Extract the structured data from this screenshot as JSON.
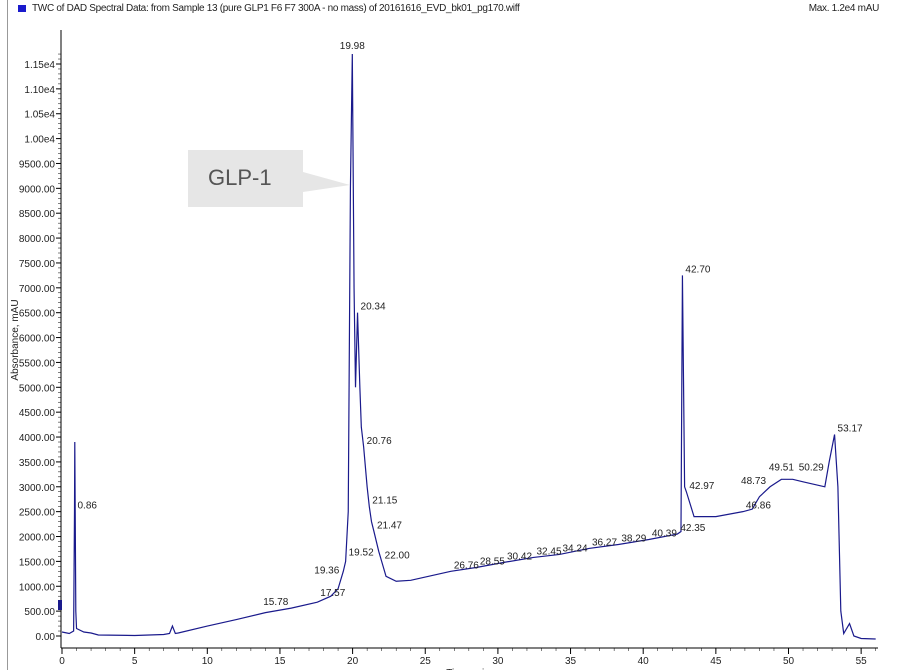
{
  "header": {
    "title": "TWC of DAD Spectral Data: from Sample 13 (pure GLP1 F6 F7 300A - no mass) of 20161616_EVD_bk01_pg170.wiff",
    "max": "Max. 1.2e4 mAU"
  },
  "annotation": {
    "label": "GLP-1",
    "target_peak": 19.98
  },
  "chart_data": {
    "type": "line",
    "xlabel": "Time, min",
    "ylabel": "Absorbance, mAU",
    "xlim": [
      0,
      56
    ],
    "ylim": [
      -200,
      11900
    ],
    "xticks": [
      0,
      5,
      10,
      15,
      20,
      25,
      30,
      35,
      40,
      45,
      50,
      55
    ],
    "yticks": [
      {
        "v": 0,
        "label": "0.00"
      },
      {
        "v": 500,
        "label": "500.00"
      },
      {
        "v": 1000,
        "label": "1000.00"
      },
      {
        "v": 1500,
        "label": "1500.00"
      },
      {
        "v": 2000,
        "label": "2000.00"
      },
      {
        "v": 2500,
        "label": "2500.00"
      },
      {
        "v": 3000,
        "label": "3000.00"
      },
      {
        "v": 3500,
        "label": "3500.00"
      },
      {
        "v": 4000,
        "label": "4000.00"
      },
      {
        "v": 4500,
        "label": "4500.00"
      },
      {
        "v": 5000,
        "label": "5000.00"
      },
      {
        "v": 5500,
        "label": "5500.00"
      },
      {
        "v": 6000,
        "label": "6000.00"
      },
      {
        "v": 6500,
        "label": "6500.00"
      },
      {
        "v": 7000,
        "label": "7000.00"
      },
      {
        "v": 7500,
        "label": "7500.00"
      },
      {
        "v": 8000,
        "label": "8000.00"
      },
      {
        "v": 8500,
        "label": "8500.00"
      },
      {
        "v": 9000,
        "label": "9000.00"
      },
      {
        "v": 9500,
        "label": "9500.00"
      },
      {
        "v": 10000,
        "label": "1.00e4"
      },
      {
        "v": 10500,
        "label": "1.05e4"
      },
      {
        "v": 11000,
        "label": "1.10e4"
      },
      {
        "v": 11500,
        "label": "1.15e4"
      }
    ],
    "color": "#1a1a8c",
    "series": [
      {
        "x": [
          0,
          0.5,
          0.8,
          0.86,
          0.88,
          0.95,
          1.0,
          1.5,
          2,
          2.5,
          5,
          7,
          7.4,
          7.6,
          7.8,
          8,
          10,
          12,
          14,
          15.78,
          17.57,
          18.5,
          19,
          19.36,
          19.52,
          19.7,
          19.85,
          19.98,
          20.1,
          20.2,
          20.34,
          20.5,
          20.6,
          20.76,
          21.0,
          21.15,
          21.3,
          21.47,
          21.8,
          22.0,
          22.3,
          23,
          24,
          26.76,
          28.55,
          30.42,
          32.45,
          34.24,
          36.27,
          38.29,
          40.39,
          42.35,
          42.6,
          42.7,
          42.85,
          42.97,
          43.5,
          45,
          46.86,
          47.5,
          48,
          48.73,
          49.51,
          50.29,
          51,
          52.5,
          52.8,
          53.17,
          53.4,
          53.6,
          53.8,
          54.2,
          54.5,
          55,
          56
        ],
        "y": [
          80,
          50,
          100,
          2500,
          3900,
          500,
          150,
          80,
          60,
          20,
          10,
          30,
          50,
          200,
          50,
          60,
          200,
          330,
          470,
          560,
          680,
          800,
          950,
          1300,
          1500,
          2500,
          9000,
          11700,
          7000,
          5000,
          6500,
          5000,
          4200,
          3800,
          3000,
          2600,
          2300,
          2100,
          1700,
          1500,
          1200,
          1100,
          1120,
          1300,
          1380,
          1480,
          1580,
          1640,
          1760,
          1840,
          1940,
          2050,
          2100,
          7250,
          3000,
          2900,
          2400,
          2400,
          2500,
          2550,
          2800,
          3000,
          3150,
          3150,
          3100,
          3000,
          3500,
          4050,
          3000,
          500,
          50,
          250,
          0,
          -50,
          -60
        ]
      }
    ],
    "peak_labels": [
      {
        "t": 0.86,
        "y": 2500,
        "label": "0.86"
      },
      {
        "t": 15.78,
        "y": 560,
        "label": "15.78"
      },
      {
        "t": 17.57,
        "y": 680,
        "label": "17.57"
      },
      {
        "t": 19.36,
        "y": 1300,
        "label": "19.36"
      },
      {
        "t": 19.52,
        "y": 1500,
        "label": "19.52"
      },
      {
        "t": 19.98,
        "y": 11700,
        "label": "19.98"
      },
      {
        "t": 20.34,
        "y": 6500,
        "label": "20.34"
      },
      {
        "t": 20.76,
        "y": 3800,
        "label": "20.76"
      },
      {
        "t": 21.15,
        "y": 2600,
        "label": "21.15"
      },
      {
        "t": 21.47,
        "y": 2100,
        "label": "21.47"
      },
      {
        "t": 22.0,
        "y": 1500,
        "label": "22.00"
      },
      {
        "t": 26.76,
        "y": 1300,
        "label": "26.76"
      },
      {
        "t": 28.55,
        "y": 1380,
        "label": "28.55"
      },
      {
        "t": 30.42,
        "y": 1480,
        "label": "30.42"
      },
      {
        "t": 32.45,
        "y": 1580,
        "label": "32.45"
      },
      {
        "t": 34.24,
        "y": 1640,
        "label": "34.24"
      },
      {
        "t": 36.27,
        "y": 1760,
        "label": "36.27"
      },
      {
        "t": 38.29,
        "y": 1840,
        "label": "38.29"
      },
      {
        "t": 40.39,
        "y": 1940,
        "label": "40.39"
      },
      {
        "t": 42.35,
        "y": 2050,
        "label": "42.35"
      },
      {
        "t": 42.7,
        "y": 7250,
        "label": "42.70"
      },
      {
        "t": 42.97,
        "y": 2900,
        "label": "42.97"
      },
      {
        "t": 46.86,
        "y": 2500,
        "label": "46.86"
      },
      {
        "t": 48.73,
        "y": 3000,
        "label": "48.73"
      },
      {
        "t": 49.51,
        "y": 3150,
        "label": "49.51"
      },
      {
        "t": 50.29,
        "y": 3150,
        "label": "50.29"
      },
      {
        "t": 53.17,
        "y": 4050,
        "label": "53.17"
      }
    ]
  }
}
